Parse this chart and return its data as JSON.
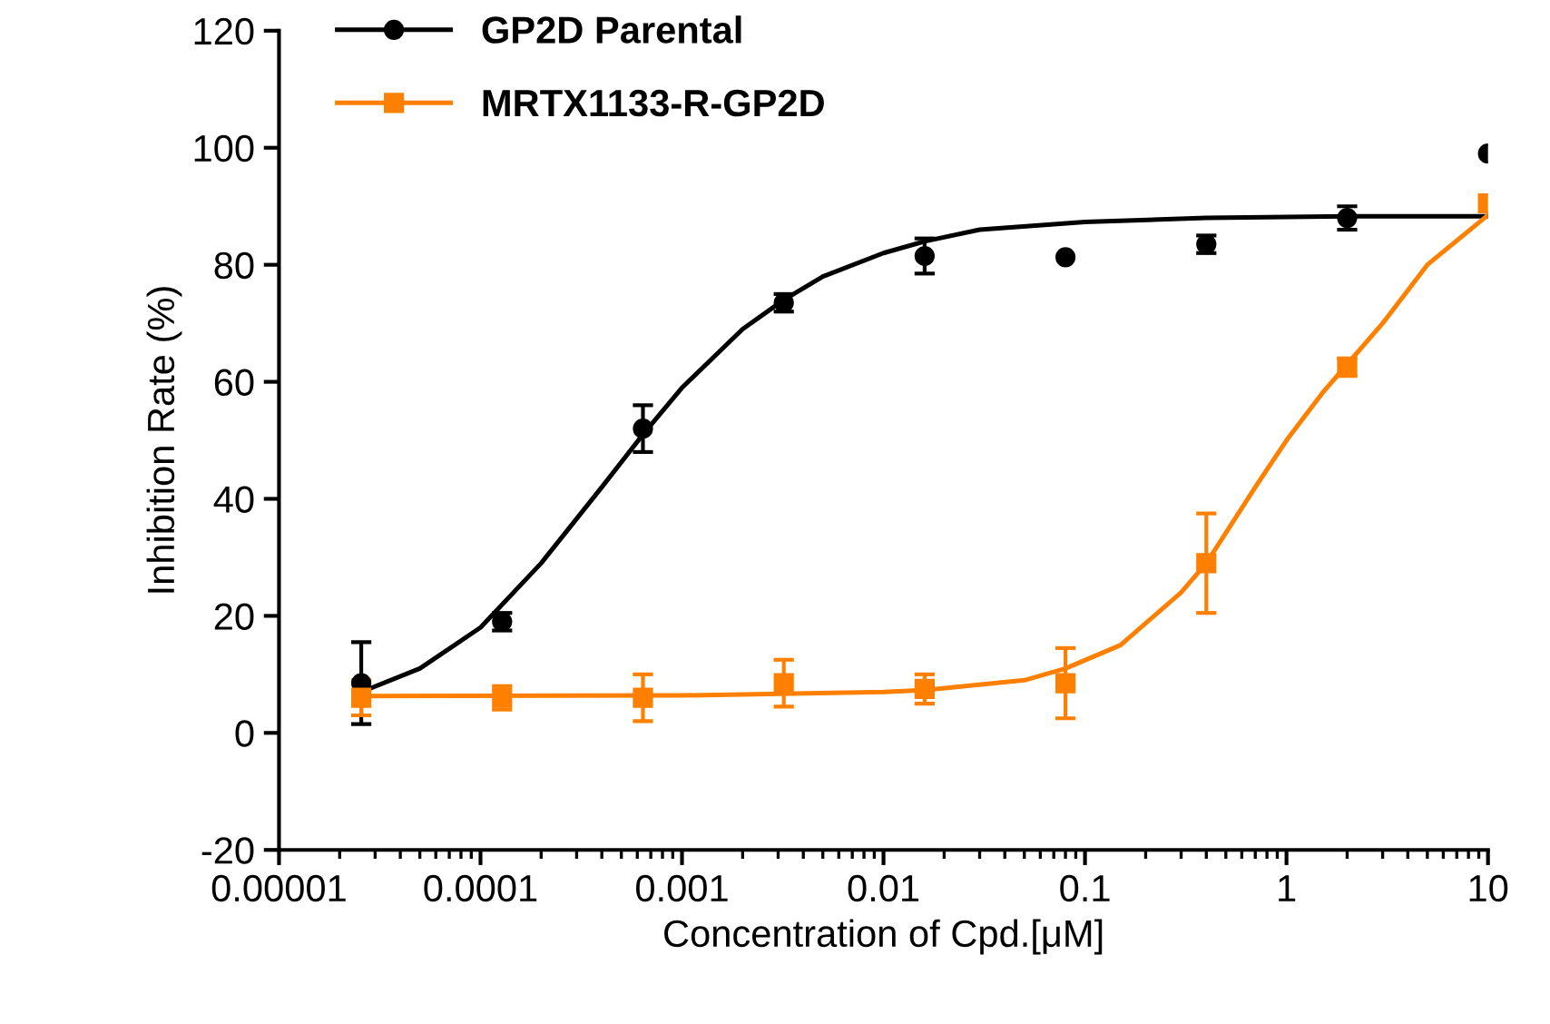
{
  "chart_data": {
    "type": "scatter",
    "xlabel": "Concentration of Cpd.[μM]",
    "ylabel": "Inhibition Rate (%)",
    "log": "x",
    "xlim": [
      1e-05,
      10
    ],
    "xticks": [
      {
        "value": 1e-05,
        "label": "0.00001"
      },
      {
        "value": 0.0001,
        "label": "0.0001"
      },
      {
        "value": 0.001,
        "label": "0.001"
      },
      {
        "value": 0.01,
        "label": "0.01"
      },
      {
        "value": 0.1,
        "label": "0.1"
      },
      {
        "value": 1,
        "label": "1"
      },
      {
        "value": 10,
        "label": "10"
      }
    ],
    "ylim": [
      -20,
      120
    ],
    "yticks": [
      -20,
      0,
      20,
      40,
      60,
      80,
      100,
      120
    ],
    "grid": false,
    "legend": "top left",
    "series": [
      {
        "name": "GP2D Parental",
        "color": "#000000",
        "marker": "circle",
        "x": [
          2.56e-05,
          0.000128,
          0.00064,
          0.0032,
          0.016,
          0.08,
          0.4,
          2,
          10
        ],
        "values": [
          8.5,
          19,
          52,
          73.5,
          81.5,
          81.3,
          83.5,
          88,
          99
        ],
        "errors": [
          7,
          1.5,
          4,
          1.5,
          3,
          null,
          1.5,
          2,
          null
        ]
      },
      {
        "name": "MRTX1133-R-GP2D",
        "color": "#ff8000",
        "marker": "square",
        "x": [
          2.56e-05,
          0.000128,
          0.00064,
          0.0032,
          0.016,
          0.08,
          0.4,
          2,
          10
        ],
        "values": [
          6,
          6,
          6,
          8.5,
          7.5,
          8.5,
          29,
          62.5,
          90.5
        ],
        "errors": [
          3,
          2,
          4,
          4,
          2.5,
          6,
          8.5,
          1.5,
          null
        ]
      },
      {
        "type": "line",
        "color": "#000000",
        "marker": "none",
        "x": [
          2.56e-05,
          5e-05,
          0.0001,
          0.0002,
          0.0004,
          0.00064,
          0.001,
          0.002,
          0.0032,
          0.005,
          0.01,
          0.016,
          0.03,
          0.1,
          0.4,
          2,
          10
        ],
        "values": [
          7,
          11,
          18,
          29,
          42,
          51,
          59,
          69,
          74,
          78,
          82,
          84,
          86,
          87.3,
          88,
          88.3,
          88.3
        ]
      },
      {
        "type": "line",
        "color": "#ff8000",
        "marker": "none",
        "x": [
          2.56e-05,
          0.001,
          0.01,
          0.016,
          0.05,
          0.08,
          0.15,
          0.3,
          0.4,
          0.7,
          1,
          1.5,
          2,
          3,
          5,
          10
        ],
        "values": [
          6.3,
          6.4,
          7,
          7.3,
          9,
          11,
          15,
          24,
          29,
          42,
          50,
          58,
          63,
          70,
          80,
          88.5
        ]
      }
    ]
  }
}
